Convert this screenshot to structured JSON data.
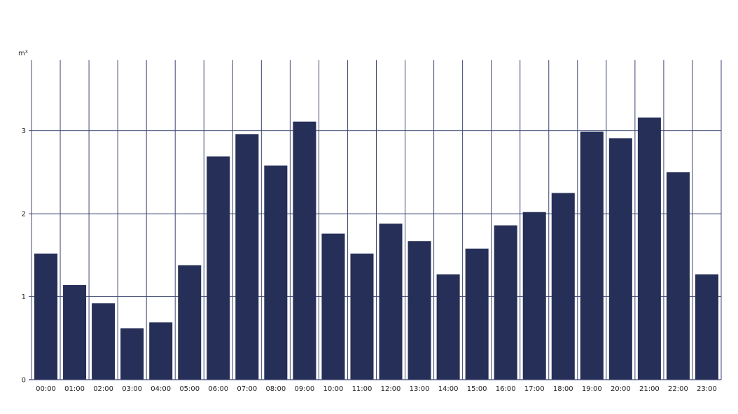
{
  "chart_data": {
    "type": "bar",
    "ylabel": "m³",
    "ylim": [
      0,
      3.85
    ],
    "yticks": [
      0,
      1,
      2,
      3
    ],
    "grid": true,
    "bar_color": "#262f57",
    "grid_color": "#3c4670",
    "categories": [
      "00:00",
      "01:00",
      "02:00",
      "03:00",
      "04:00",
      "05:00",
      "06:00",
      "07:00",
      "08:00",
      "09:00",
      "10:00",
      "11:00",
      "12:00",
      "13:00",
      "14:00",
      "15:00",
      "16:00",
      "17:00",
      "18:00",
      "19:00",
      "20:00",
      "21:00",
      "22:00",
      "23:00"
    ],
    "values": [
      1.52,
      1.14,
      0.92,
      0.62,
      0.69,
      1.38,
      2.69,
      2.96,
      2.58,
      3.11,
      1.76,
      1.52,
      1.88,
      1.67,
      1.27,
      1.58,
      1.86,
      2.02,
      2.25,
      2.99,
      2.91,
      3.16,
      2.5,
      1.27
    ]
  }
}
